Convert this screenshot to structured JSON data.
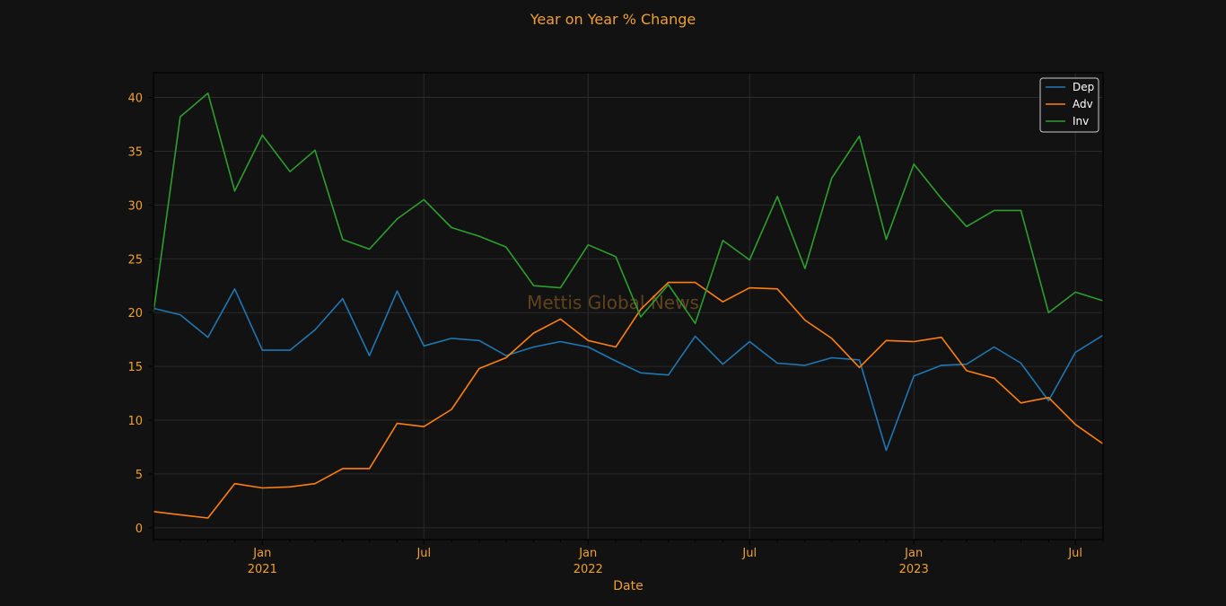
{
  "chart_data": {
    "type": "line",
    "title": "Year on Year % Change",
    "xlabel": "Date",
    "ylabel": "",
    "ylim": [
      -1.1,
      42.3
    ],
    "xlim": [
      "2020-09-01",
      "2023-08-01"
    ],
    "grid": true,
    "legend_position": "top-right",
    "watermark": "Mettis Global News",
    "y_ticks": [
      0,
      5,
      10,
      15,
      20,
      25,
      30,
      35,
      40
    ],
    "x_major_ticks": [
      {
        "date": "2021-01-01",
        "label": "Jan",
        "year": "2021"
      },
      {
        "date": "2021-07-01",
        "label": "Jul",
        "year": ""
      },
      {
        "date": "2022-01-01",
        "label": "Jan",
        "year": "2022"
      },
      {
        "date": "2022-07-01",
        "label": "Jul",
        "year": ""
      },
      {
        "date": "2023-01-01",
        "label": "Jan",
        "year": "2023"
      },
      {
        "date": "2023-07-01",
        "label": "Jul",
        "year": ""
      }
    ],
    "x": [
      "2020-09",
      "2020-10",
      "2020-11",
      "2020-12",
      "2021-01",
      "2021-02",
      "2021-03",
      "2021-04",
      "2021-05",
      "2021-06",
      "2021-07",
      "2021-08",
      "2021-09",
      "2021-10",
      "2021-11",
      "2021-12",
      "2022-01",
      "2022-02",
      "2022-03",
      "2022-04",
      "2022-05",
      "2022-06",
      "2022-07",
      "2022-08",
      "2022-09",
      "2022-10",
      "2022-11",
      "2022-12",
      "2023-01",
      "2023-02",
      "2023-03",
      "2023-04",
      "2023-05",
      "2023-06",
      "2023-07",
      "2023-08"
    ],
    "series": [
      {
        "name": "Dep",
        "color": "#1f77b4",
        "values": [
          20.4,
          19.8,
          17.7,
          22.2,
          16.5,
          16.5,
          18.4,
          21.3,
          16.0,
          22.0,
          16.9,
          17.6,
          17.4,
          16.0,
          16.8,
          17.3,
          16.8,
          15.5,
          14.4,
          14.2,
          17.8,
          15.2,
          17.3,
          15.3,
          15.1,
          15.8,
          15.6,
          7.2,
          14.1,
          15.1,
          15.2,
          16.8,
          15.3,
          11.8,
          16.3,
          17.9
        ]
      },
      {
        "name": "Adv",
        "color": "#ff7f0e",
        "values": [
          1.5,
          1.2,
          0.9,
          4.1,
          3.7,
          3.8,
          4.1,
          5.5,
          5.5,
          9.7,
          9.4,
          11.0,
          14.8,
          15.8,
          18.1,
          19.4,
          17.4,
          16.8,
          20.3,
          22.8,
          22.8,
          21.0,
          22.3,
          22.2,
          19.3,
          17.6,
          14.9,
          17.4,
          17.3,
          17.7,
          14.6,
          13.9,
          11.6,
          12.1,
          9.6,
          7.8
        ]
      },
      {
        "name": "Inv",
        "color": "#2ca02c",
        "values": [
          20.0,
          38.2,
          40.4,
          31.3,
          36.5,
          33.1,
          35.1,
          26.8,
          25.9,
          28.7,
          30.5,
          27.9,
          27.1,
          26.1,
          22.5,
          22.3,
          26.3,
          25.2,
          19.6,
          22.6,
          19.0,
          26.7,
          24.9,
          30.8,
          24.1,
          32.5,
          36.4,
          26.8,
          33.8,
          30.6,
          28.0,
          29.5,
          29.5,
          20.0,
          21.9,
          21.1
        ]
      }
    ]
  }
}
